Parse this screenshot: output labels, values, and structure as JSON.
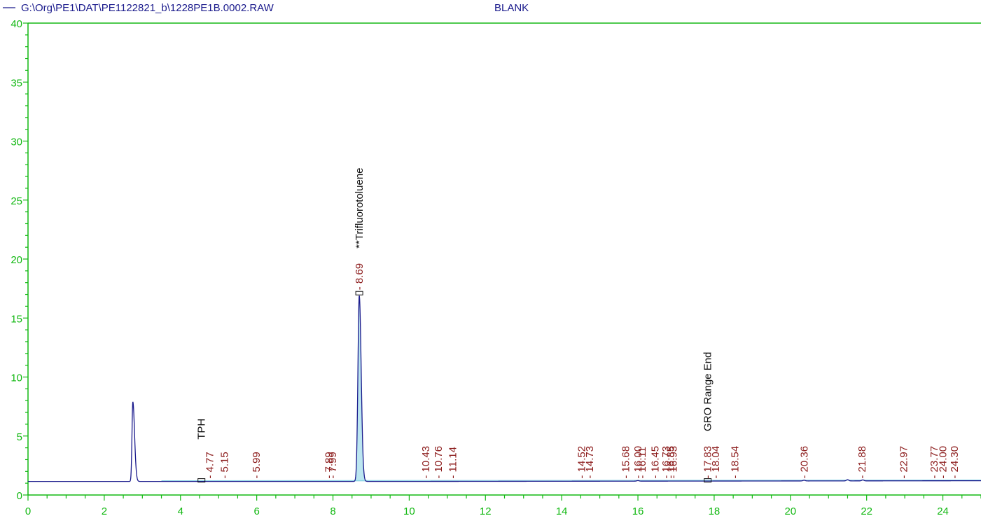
{
  "header": {
    "file_path": "G:\\Org\\PE1\\DAT\\PE1122821_b\\1228PE1B.0002.RAW",
    "sample_name": "BLANK"
  },
  "colors": {
    "axis": "#12b812",
    "trace": "#1a1a8c",
    "retention_labels": "#8b1a1a",
    "compound_labels": "#111111",
    "baseline_fill": "#8fd6e6"
  },
  "chart_data": {
    "type": "line",
    "title": "",
    "xlabel": "",
    "ylabel": "",
    "xlim": [
      0,
      25
    ],
    "ylim": [
      0,
      40
    ],
    "x_ticks": [
      0,
      2,
      4,
      6,
      8,
      10,
      12,
      14,
      16,
      18,
      20,
      22,
      24
    ],
    "y_ticks": [
      0,
      5,
      10,
      15,
      20,
      25,
      30,
      35,
      40
    ],
    "grid": false,
    "baseline": 1.15,
    "peaks": [
      {
        "rt": 2.75,
        "height": 7.9
      },
      {
        "rt": 8.69,
        "height": 16.9
      }
    ],
    "retention_times": [
      "4.77",
      "5.15",
      "5.99",
      "7.89",
      "7.99",
      "8.69",
      "10.43",
      "10.76",
      "11.14",
      "14.52",
      "14.73",
      "15.68",
      "16.00",
      "16.11",
      "16.45",
      "16.73",
      "16.85",
      "16.93",
      "17.83",
      "18.04",
      "18.54",
      "20.36",
      "21.88",
      "22.97",
      "23.77",
      "24.00",
      "24.30"
    ],
    "compounds": [
      {
        "name": "TPH",
        "rt": 4.55
      },
      {
        "name": "**Trifluorotoluene",
        "rt": 8.69
      },
      {
        "name": "GRO Range End",
        "rt": 17.83
      }
    ]
  }
}
